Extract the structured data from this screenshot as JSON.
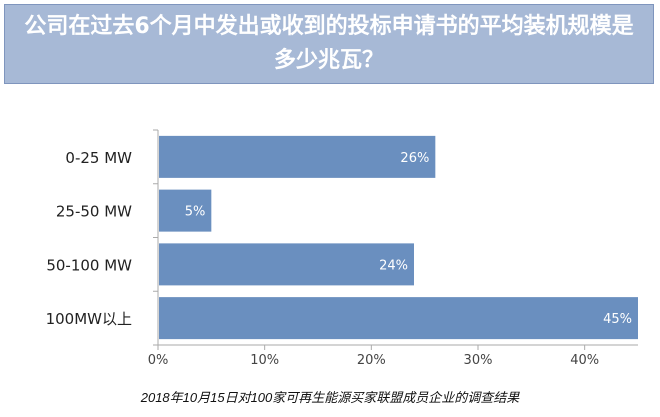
{
  "chart_data": {
    "type": "bar",
    "orientation": "horizontal",
    "title": "公司在过去6个月中发出或收到的投标申请书的平均装机规模是多少兆瓦？",
    "categories": [
      "0-25 MW",
      "25-50 MW",
      "50-100 MW",
      "100MW以上"
    ],
    "values": [
      26,
      5,
      24,
      45
    ],
    "data_labels": [
      "26%",
      "5%",
      "24%",
      "45%"
    ],
    "xlim": [
      0,
      45
    ],
    "xticks": [
      0,
      10,
      20,
      30,
      40
    ],
    "xtick_labels": [
      "0%",
      "10%",
      "20%",
      "30%",
      "40%"
    ],
    "grid": false,
    "bar_color": "#6a8fbf"
  },
  "footnote": "2018年10月15日对100家可再生能源买家联盟成员企业的调查结果"
}
